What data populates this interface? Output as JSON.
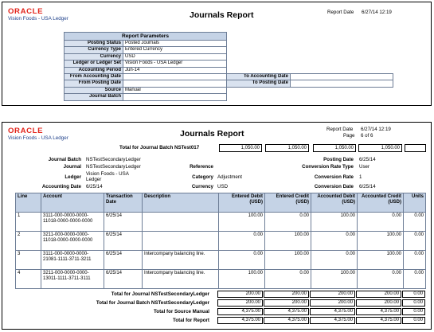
{
  "brand": {
    "logo": "ORACLE",
    "company": "Vision Foods - USA Ledger"
  },
  "report_title": "Journals Report",
  "report_date_label": "Report Date",
  "report_date": "6/27/14 12:19",
  "page_label": "Page",
  "page_value": "6 of 6",
  "params": {
    "header": "Report Parameters",
    "rows": [
      {
        "label": "Posting Status",
        "value": "Posted Journals"
      },
      {
        "label": "Currency Type",
        "value": "Entered Currency"
      },
      {
        "label": "Currency",
        "value": "USD"
      },
      {
        "label": "Ledger or Ledger Set",
        "value": "Vision Foods - USA Ledger"
      },
      {
        "label": "Accounting Period",
        "value": "Jun-14"
      }
    ],
    "from_accounting_date": "From Accounting Date",
    "to_accounting_date": "To Accounting Date",
    "from_posting_date": "From Posting Date",
    "to_posting_date": "To Posting Date",
    "source_label": "Source",
    "source_value": "Manual",
    "journal_batch_label": "Journal Batch"
  },
  "batch_total": {
    "label": "Total for Journal Batch NSTest017",
    "values": [
      "1,050.00",
      "1,050.00",
      "1,050.00",
      "1,050.00",
      ""
    ]
  },
  "journal_info": {
    "journal_batch_label": "Journal Batch",
    "journal_batch": "NSTestSecondaryLedger",
    "journal_label": "Journal",
    "journal": "NSTestSecondaryLedger",
    "ledger_label": "Ledger",
    "ledger_line1": "Vision Foods - USA",
    "ledger_line2": "Ledger",
    "accounting_date_label": "Accounting Date",
    "accounting_date": "6/25/14",
    "reference_label": "Reference",
    "category_label": "Category",
    "category": "Adjustment",
    "currency_label": "Currency",
    "currency": "USD",
    "posting_date_label": "Posting Date",
    "posting_date": "6/25/14",
    "conversion_rate_type_label": "Conversion Rate Type",
    "conversion_rate_type": "User",
    "conversion_rate_label": "Conversion Rate",
    "conversion_rate": "1",
    "conversion_date_label": "Conversion Date",
    "conversion_date": "6/25/14"
  },
  "lines_table": {
    "headers": {
      "line": "Line",
      "account": "Account",
      "transaction_date": "Transaction Date",
      "description": "Description",
      "entered_debit": "Entered Debit (USD)",
      "entered_credit": "Entered Credit (USD)",
      "accounted_debit": "Accounted Debit (USD)",
      "accounted_credit": "Accounted Credit (USD)",
      "units": "Units"
    },
    "rows": [
      {
        "line": "1",
        "account": "3111-000-0000-0000-11018-0000-0000-0000",
        "date": "6/25/14",
        "description": "",
        "ed": "100.00",
        "ec": "0.00",
        "ad": "100.00",
        "ac": "0.00",
        "units": "0.00"
      },
      {
        "line": "2",
        "account": "3211-000-0000-0000-11018-0000-0000-0000",
        "date": "6/25/14",
        "description": "",
        "ed": "0.00",
        "ec": "100.00",
        "ad": "0.00",
        "ac": "100.00",
        "units": "0.00"
      },
      {
        "line": "3",
        "account": "3111-000-0000-0000-21081-1111-3711-3211",
        "date": "6/25/14",
        "description": "Intercompany balancing line.",
        "ed": "0.00",
        "ec": "100.00",
        "ad": "0.00",
        "ac": "100.00",
        "units": "0.00"
      },
      {
        "line": "4",
        "account": "3211-000-0000-0000-13011-1111-3711-3111",
        "date": "6/25/14",
        "description": "Intercompany balancing line.",
        "ed": "100.00",
        "ec": "0.00",
        "ad": "100.00",
        "ac": "0.00",
        "units": "0.00"
      }
    ]
  },
  "totals": [
    {
      "label": "Total for Journal NSTestSecondaryLedger",
      "values": [
        "200.00",
        "200.00",
        "200.00",
        "200.00",
        "0.00"
      ]
    },
    {
      "label": "Total for Journal Batch NSTestSecondaryLedger",
      "values": [
        "200.00",
        "200.00",
        "200.00",
        "200.00",
        "0.00"
      ]
    },
    {
      "label": "Total for Source Manual",
      "values": [
        "4,375.00",
        "4,375.00",
        "4,375.00",
        "4,375.00",
        "0.00"
      ]
    },
    {
      "label": "Total for Report",
      "values": [
        "4,375.00",
        "4,375.00",
        "4,375.00",
        "4,375.00",
        "0.00"
      ]
    }
  ]
}
